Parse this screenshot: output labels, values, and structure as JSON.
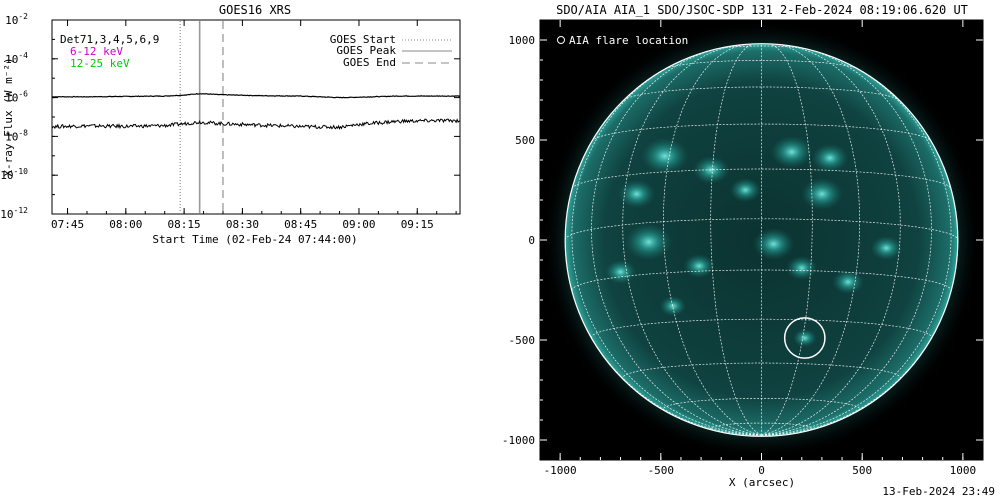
{
  "chart_data": [
    {
      "type": "line",
      "title": "GOES16 XRS",
      "xlabel": "Start Time (02-Feb-24 07:44:00)",
      "ylabel": "X-ray Flux (W m⁻²)",
      "y_scale": "log",
      "x_range": [
        "07:41",
        "09:26"
      ],
      "ylim": [
        1e-12,
        0.01
      ],
      "x_ticks": [
        "07:45",
        "08:00",
        "08:15",
        "08:30",
        "08:45",
        "09:00",
        "09:15"
      ],
      "y_ticks": [
        {
          "base": "10",
          "exp": "-2"
        },
        {
          "base": "10",
          "exp": "-4"
        },
        {
          "base": "10",
          "exp": "-6"
        },
        {
          "base": "10",
          "exp": "-8"
        },
        {
          "base": "10",
          "exp": "-10"
        },
        {
          "base": "10",
          "exp": "-12"
        }
      ],
      "detectors_label": "Det71,3,4,5,6,9",
      "series": [
        {
          "name": "6-12 keV",
          "color": "#cc00cc",
          "x": [
            "07:41",
            "07:50",
            "08:00",
            "08:10",
            "08:15",
            "08:19",
            "08:25",
            "08:35",
            "08:45",
            "08:55",
            "09:00",
            "09:10",
            "09:20",
            "09:26"
          ],
          "values": [
            1.1e-06,
            1.1e-06,
            1.15e-06,
            1.2e-06,
            1.35e-06,
            1.6e-06,
            1.4e-06,
            1.25e-06,
            1.2e-06,
            1e-06,
            1.05e-06,
            1.2e-06,
            1.2e-06,
            1.2e-06
          ]
        },
        {
          "name": "12-25 keV",
          "color": "#00cc00",
          "x": [
            "07:41",
            "07:50",
            "08:00",
            "08:10",
            "08:15",
            "08:19",
            "08:25",
            "08:35",
            "08:45",
            "08:55",
            "09:00",
            "09:10",
            "09:20",
            "09:26"
          ],
          "values": [
            3.2e-08,
            3.5e-08,
            3.3e-08,
            3.6e-08,
            4.5e-08,
            5.5e-08,
            4.5e-08,
            3.8e-08,
            3.2e-08,
            3e-08,
            4.2e-08,
            6e-08,
            6.5e-08,
            6.5e-08
          ]
        }
      ],
      "markers": [
        {
          "name": "GOES Start",
          "time": "08:14",
          "style": "dotted"
        },
        {
          "name": "GOES Peak",
          "time": "08:19",
          "style": "solid"
        },
        {
          "name": "GOES End",
          "time": "08:25",
          "style": "dashed"
        }
      ]
    },
    {
      "type": "image",
      "title": "SDO/AIA AIA_1 SDO/JSOC-SDP 131  2-Feb-2024 08:19:06.620 UT",
      "xlabel": "X (arcsec)",
      "ylabel": "",
      "x_ticks": [
        "-1000",
        "-500",
        "0",
        "500",
        "1000"
      ],
      "y_ticks": [
        "1000",
        "500",
        "0",
        "-500",
        "-1000"
      ],
      "x_range": [
        -1100,
        1100
      ],
      "y_range": [
        -1100,
        1100
      ],
      "solar_radius_arcsec": 975,
      "annotation": "AIA flare location",
      "flare_location_arcsec": {
        "x": 215,
        "y": -490
      },
      "flare_circle_radius_arcsec": 100,
      "colors": {
        "background": "#000000",
        "disk": "#0d3b3a",
        "grid": "#ffffff",
        "bright": "#3fe0d4"
      }
    }
  ],
  "footer": {
    "timestamp": "13-Feb-2024 23:49"
  }
}
